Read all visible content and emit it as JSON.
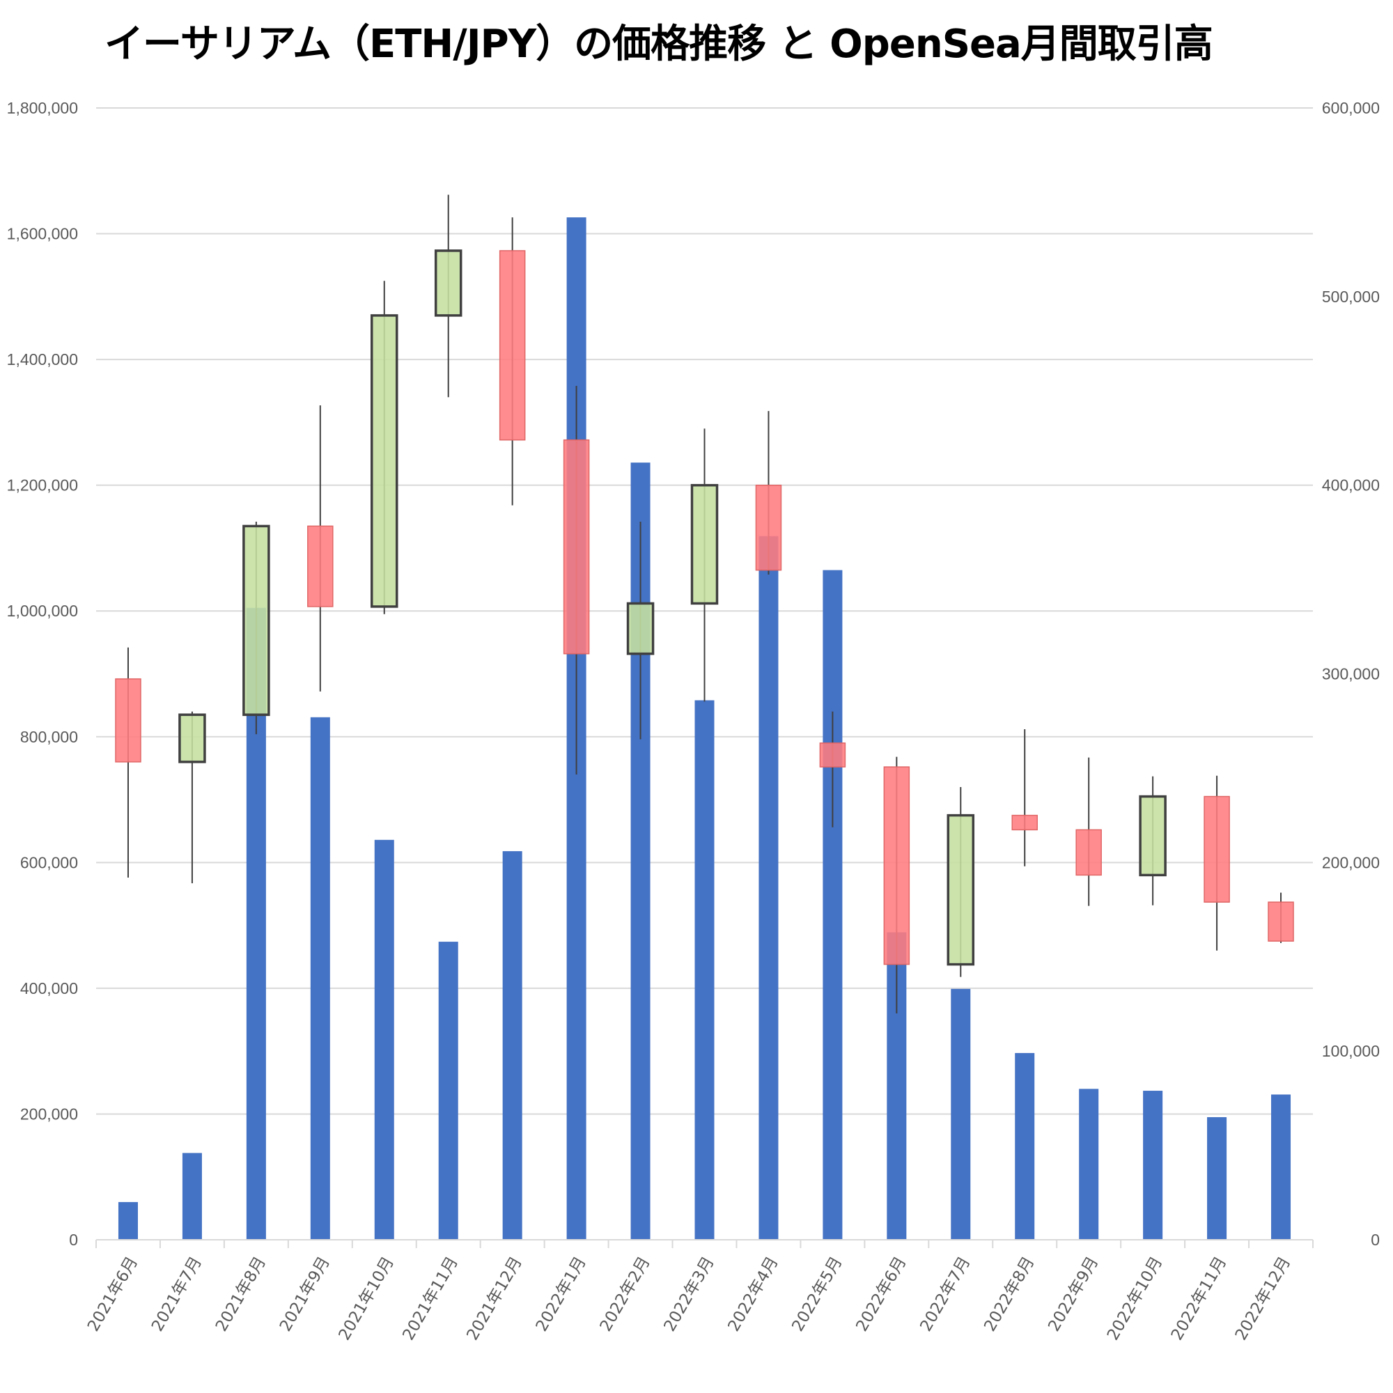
{
  "chart_data": {
    "type": "candlestick+bar",
    "title": "イーサリアム（ETH/JPY）の価格推移 と OpenSea月間取引高",
    "categories": [
      "2021年6月",
      "2021年7月",
      "2021年8月",
      "2021年9月",
      "2021年10月",
      "2021年11月",
      "2021年12月",
      "2022年1月",
      "2022年2月",
      "2022年3月",
      "2022年4月",
      "2022年5月",
      "2022年6月",
      "2022年7月",
      "2022年8月",
      "2022年9月",
      "2022年10月",
      "2022年11月",
      "2022年12月"
    ],
    "left_axis": {
      "ylim": [
        0,
        1800000
      ],
      "ticks": [
        "0",
        "200,000",
        "400,000",
        "600,000",
        "800,000",
        "1,000,000",
        "1,200,000",
        "1,400,000",
        "1,600,000",
        "1,800,000"
      ]
    },
    "right_axis": {
      "ylim": [
        0,
        600000
      ],
      "ticks": [
        "0",
        "100,000",
        "200,000",
        "300,000",
        "400,000",
        "500,000",
        "600,000"
      ]
    },
    "volume": {
      "name": "OpenSea月間取引高",
      "axis": "right",
      "color": "#4472C4",
      "values": [
        20000,
        46000,
        335000,
        277000,
        212000,
        158000,
        206000,
        542000,
        412000,
        286000,
        373000,
        355000,
        163000,
        133000,
        99000,
        80000,
        79000,
        65000,
        77000
      ]
    },
    "candles": {
      "name": "ETH/JPY",
      "axis": "left",
      "up_color": "#C5E0A0",
      "down_color": "#FF7C80",
      "open": [
        892000,
        760000,
        835000,
        1135000,
        1007000,
        1470000,
        1573000,
        1272000,
        932000,
        1012000,
        1200000,
        790000,
        752000,
        438000,
        675000,
        652000,
        580000,
        705000,
        537000
      ],
      "high": [
        942000,
        840000,
        1142000,
        1327000,
        1525000,
        1662000,
        1626000,
        1358000,
        1142000,
        1290000,
        1318000,
        840000,
        768000,
        720000,
        812000,
        767000,
        737000,
        738000,
        552000
      ],
      "low": [
        576000,
        567000,
        804000,
        872000,
        995000,
        1340000,
        1168000,
        740000,
        796000,
        856000,
        1058000,
        656000,
        360000,
        418000,
        594000,
        531000,
        532000,
        460000,
        472000
      ],
      "close": [
        760000,
        835000,
        1135000,
        1007000,
        1470000,
        1573000,
        1272000,
        932000,
        1012000,
        1200000,
        1065000,
        752000,
        438000,
        675000,
        652000,
        580000,
        705000,
        537000,
        475000
      ]
    }
  }
}
